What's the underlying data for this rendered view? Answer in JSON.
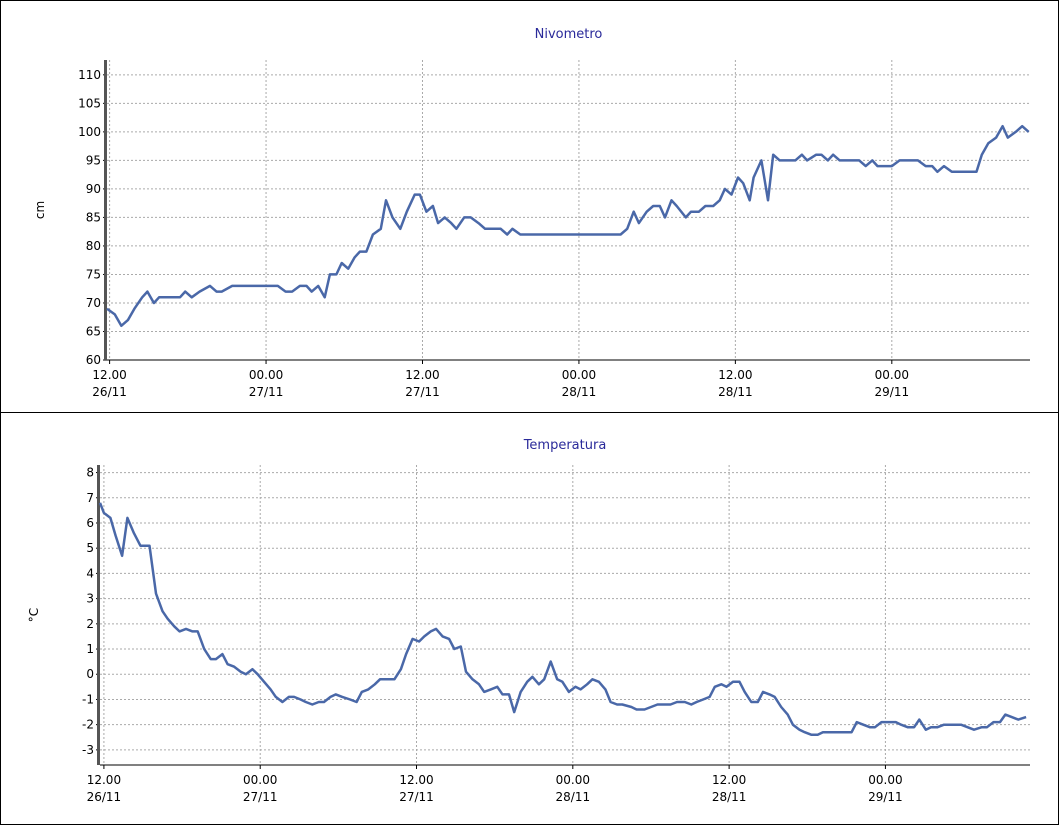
{
  "chart_data": [
    {
      "type": "line",
      "title": "Nivometro",
      "y_label": "cm",
      "x": [
        -0.2,
        0.4,
        0.9,
        1.4,
        1.9,
        2.5,
        2.9,
        3.4,
        3.8,
        4.5,
        5.4,
        5.8,
        6.3,
        6.9,
        7.7,
        8.2,
        8.6,
        9.4,
        10.8,
        12.3,
        12.9,
        13.5,
        14,
        14.6,
        15.1,
        15.5,
        16,
        16.5,
        16.9,
        17.4,
        17.8,
        18.3,
        18.8,
        19.2,
        19.7,
        20.2,
        20.8,
        21.2,
        21.7,
        22.3,
        22.8,
        23.4,
        23.8,
        24.3,
        24.8,
        25.2,
        25.7,
        26.2,
        26.6,
        27.2,
        27.7,
        28.3,
        28.8,
        30,
        30.5,
        30.9,
        31.5,
        39.2,
        39.7,
        40.2,
        40.6,
        41.2,
        41.7,
        42.2,
        42.6,
        43.1,
        43.5,
        44.2,
        44.6,
        45.2,
        45.7,
        46.3,
        46.8,
        47.2,
        47.7,
        48.2,
        48.6,
        49.1,
        49.4,
        50,
        50.5,
        50.9,
        51.4,
        52.6,
        53.1,
        53.5,
        54.2,
        54.6,
        55.1,
        55.5,
        56,
        57.5,
        58,
        58.5,
        58.9,
        60,
        60.6,
        62,
        62.6,
        63.1,
        63.5,
        64,
        64.6,
        66.5,
        66.9,
        67.4,
        68,
        68.5,
        68.9,
        69.5,
        70,
        70.5
      ],
      "series": [
        {
          "name": "Nivometro",
          "color": "#4a68a8",
          "values": [
            69,
            68,
            66,
            67,
            69,
            71,
            72,
            70,
            71,
            71,
            71,
            72,
            71,
            72,
            73,
            72,
            72,
            73,
            73,
            73,
            73,
            72,
            72,
            73,
            73,
            72,
            73,
            71,
            75,
            75,
            77,
            76,
            78,
            79,
            79,
            82,
            83,
            88,
            85,
            83,
            86,
            89,
            89,
            86,
            87,
            84,
            85,
            84,
            83,
            85,
            85,
            84,
            83,
            83,
            82,
            83,
            82,
            82,
            83,
            86,
            84,
            86,
            87,
            87,
            85,
            88,
            87,
            85,
            86,
            86,
            87,
            87,
            88,
            90,
            89,
            92,
            91,
            88,
            92,
            95,
            88,
            96,
            95,
            95,
            96,
            95,
            96,
            96,
            95,
            96,
            95,
            95,
            94,
            95,
            94,
            94,
            95,
            95,
            94,
            94,
            93,
            94,
            93,
            93,
            96,
            98,
            99,
            101,
            99,
            100,
            101,
            100
          ]
        }
      ],
      "xlim": [
        -0.2,
        70.6
      ],
      "ylim": [
        60,
        112.6
      ],
      "xticks": [
        {
          "value": 0,
          "label": [
            "12.00",
            "26/11"
          ]
        },
        {
          "value": 12,
          "label": [
            "00.00",
            "27/11"
          ]
        },
        {
          "value": 24,
          "label": [
            "12.00",
            "27/11"
          ]
        },
        {
          "value": 36,
          "label": [
            "00.00",
            "28/11"
          ]
        },
        {
          "value": 48,
          "label": [
            "12.00",
            "28/11"
          ]
        },
        {
          "value": 60,
          "label": [
            "00.00",
            "29/11"
          ]
        }
      ],
      "yticks": [
        60,
        65,
        70,
        75,
        80,
        85,
        90,
        95,
        100,
        105,
        110
      ],
      "grid": true
    },
    {
      "type": "line",
      "title": "Temperatura",
      "y_label": "°C",
      "x": [
        -0.3,
        0,
        0.5,
        0.9,
        1.4,
        1.8,
        2.3,
        2.8,
        3.5,
        4,
        4.5,
        4.9,
        5.4,
        5.8,
        6.3,
        6.8,
        7.2,
        7.7,
        8.2,
        8.6,
        9.1,
        9.5,
        10,
        10.5,
        10.9,
        11.4,
        11.8,
        12.3,
        12.8,
        13.2,
        13.7,
        14.2,
        14.6,
        15.1,
        15.5,
        16,
        16.5,
        16.9,
        17.4,
        17.8,
        18.3,
        18.9,
        19.4,
        19.8,
        20.3,
        20.8,
        21.2,
        21.7,
        22.3,
        22.8,
        23.2,
        23.7,
        24.2,
        24.6,
        25.1,
        25.5,
        26,
        26.5,
        26.9,
        27.4,
        27.8,
        28.3,
        28.8,
        29.2,
        29.7,
        30.2,
        30.6,
        31.1,
        31.5,
        32,
        32.5,
        32.9,
        33.4,
        33.8,
        34.3,
        34.8,
        35.2,
        35.7,
        36.2,
        36.6,
        37.1,
        37.5,
        38,
        38.5,
        38.9,
        39.4,
        39.8,
        40.5,
        40.9,
        41.5,
        42,
        42.5,
        42.9,
        43.5,
        44,
        44.6,
        45.1,
        45.5,
        46,
        46.5,
        46.9,
        47.4,
        47.8,
        48.3,
        48.8,
        49.2,
        49.7,
        50.2,
        50.6,
        51.1,
        51.5,
        52,
        52.5,
        52.9,
        53.4,
        53.8,
        54.3,
        54.8,
        55.2,
        55.8,
        56.6,
        57.4,
        57.8,
        58.3,
        58.8,
        59.2,
        59.7,
        60.2,
        60.8,
        61.2,
        61.7,
        62.2,
        62.6,
        63.1,
        63.5,
        64,
        64.5,
        65.1,
        65.8,
        66.3,
        66.8,
        67.4,
        67.8,
        68.3,
        68.8,
        69.2,
        69.7,
        70.2,
        70.8
      ],
      "series": [
        {
          "name": "Temperatura",
          "color": "#4a68a8",
          "values": [
            6.8,
            6.4,
            6.2,
            5.5,
            4.7,
            6.2,
            5.6,
            5.1,
            5.1,
            3.2,
            2.5,
            2.2,
            1.9,
            1.7,
            1.8,
            1.7,
            1.7,
            1.0,
            0.6,
            0.6,
            0.8,
            0.4,
            0.3,
            0.1,
            0.0,
            0.2,
            0.0,
            -0.3,
            -0.6,
            -0.9,
            -1.1,
            -0.9,
            -0.9,
            -1.0,
            -1.1,
            -1.2,
            -1.1,
            -1.1,
            -0.9,
            -0.8,
            -0.9,
            -1.0,
            -1.1,
            -0.7,
            -0.6,
            -0.4,
            -0.2,
            -0.2,
            -0.2,
            0.2,
            0.8,
            1.4,
            1.3,
            1.5,
            1.7,
            1.8,
            1.5,
            1.4,
            1.0,
            1.1,
            0.1,
            -0.2,
            -0.4,
            -0.7,
            -0.6,
            -0.5,
            -0.8,
            -0.8,
            -1.5,
            -0.7,
            -0.3,
            -0.1,
            -0.4,
            -0.2,
            0.5,
            -0.2,
            -0.3,
            -0.7,
            -0.5,
            -0.6,
            -0.4,
            -0.2,
            -0.3,
            -0.6,
            -1.1,
            -1.2,
            -1.2,
            -1.3,
            -1.4,
            -1.4,
            -1.3,
            -1.2,
            -1.2,
            -1.2,
            -1.1,
            -1.1,
            -1.2,
            -1.1,
            -1.0,
            -0.9,
            -0.5,
            -0.4,
            -0.5,
            -0.3,
            -0.3,
            -0.7,
            -1.1,
            -1.1,
            -0.7,
            -0.8,
            -0.9,
            -1.3,
            -1.6,
            -2.0,
            -2.2,
            -2.3,
            -2.4,
            -2.4,
            -2.3,
            -2.3,
            -2.3,
            -2.3,
            -1.9,
            -2.0,
            -2.1,
            -2.1,
            -1.9,
            -1.9,
            -1.9,
            -2.0,
            -2.1,
            -2.1,
            -1.8,
            -2.2,
            -2.1,
            -2.1,
            -2.0,
            -2.0,
            -2.0,
            -2.1,
            -2.2,
            -2.1,
            -2.1,
            -1.9,
            -1.9,
            -1.6,
            -1.7,
            -1.8,
            -1.7
          ]
        }
      ],
      "xlim": [
        -0.3,
        71.1
      ],
      "ylim": [
        -3.6,
        8.3
      ],
      "xticks": [
        {
          "value": 0,
          "label": [
            "12.00",
            "26/11"
          ]
        },
        {
          "value": 12,
          "label": [
            "00.00",
            "27/11"
          ]
        },
        {
          "value": 24,
          "label": [
            "12.00",
            "27/11"
          ]
        },
        {
          "value": 36,
          "label": [
            "00.00",
            "28/11"
          ]
        },
        {
          "value": 48,
          "label": [
            "12.00",
            "28/11"
          ]
        },
        {
          "value": 60,
          "label": [
            "00.00",
            "29/11"
          ]
        }
      ],
      "yticks": [
        -3,
        -2,
        -1,
        0,
        1,
        2,
        3,
        4,
        5,
        6,
        7,
        8
      ],
      "grid": true
    }
  ]
}
